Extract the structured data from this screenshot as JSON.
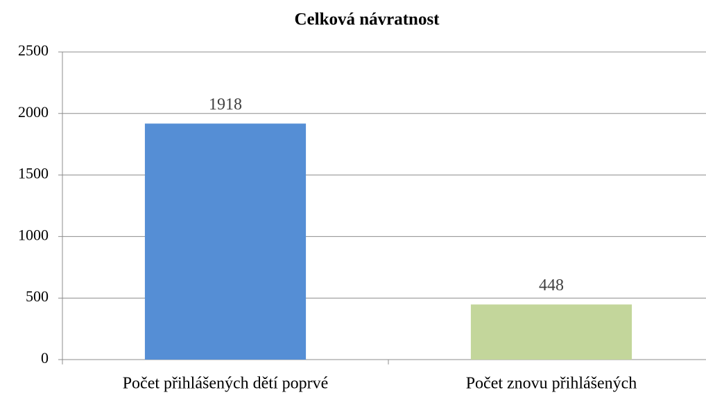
{
  "chart_data": {
    "type": "bar",
    "title": "Celková návratnost",
    "categories": [
      "Počet přihlášených dětí poprvé",
      "Počet znovu přihlášených"
    ],
    "values": [
      1918,
      448
    ],
    "colors": [
      "#558ed5",
      "#c3d69b"
    ],
    "ylim": [
      0,
      2500
    ],
    "yticks": [
      0,
      500,
      1000,
      1500,
      2000,
      2500
    ],
    "grid": true
  }
}
